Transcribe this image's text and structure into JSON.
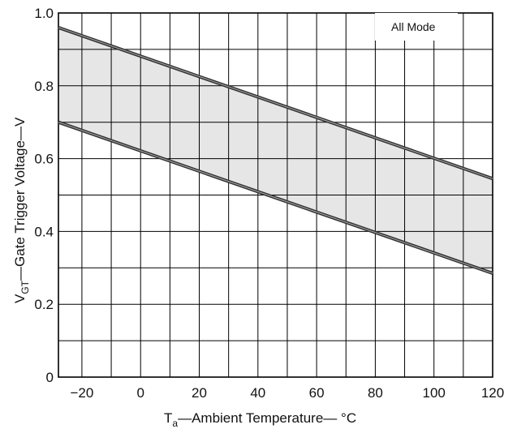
{
  "chart_data": {
    "type": "line",
    "x_range": [
      -28,
      120
    ],
    "y_range": [
      0,
      1.0
    ],
    "x_ticks": [
      -20,
      0,
      20,
      40,
      60,
      80,
      100,
      120
    ],
    "x_tick_labels": [
      "−20",
      "0",
      "20",
      "40",
      "60",
      "80",
      "100",
      "120"
    ],
    "y_ticks": [
      0,
      0.2,
      0.4,
      0.6,
      0.8,
      1.0
    ],
    "y_tick_labels": [
      "0",
      "0.2",
      "0.4",
      "0.6",
      "0.8",
      "1.0"
    ],
    "grid": true,
    "shaded_band": true,
    "xlabel": {
      "main": "T",
      "sub": "a",
      "rest": "—Ambient Temperature— °C"
    },
    "ylabel": {
      "main": "V",
      "sub": "GT",
      "rest": "—Gate Trigger Voltage—V"
    },
    "annotation": "All Mode",
    "series": [
      {
        "x": [
          -28,
          120
        ],
        "y": [
          0.96,
          0.545
        ]
      },
      {
        "x": [
          -28,
          120
        ],
        "y": [
          0.7,
          0.285
        ]
      }
    ],
    "colors": {
      "line": "#333333",
      "grid": "#000000",
      "band": "#d9d9d9"
    }
  }
}
